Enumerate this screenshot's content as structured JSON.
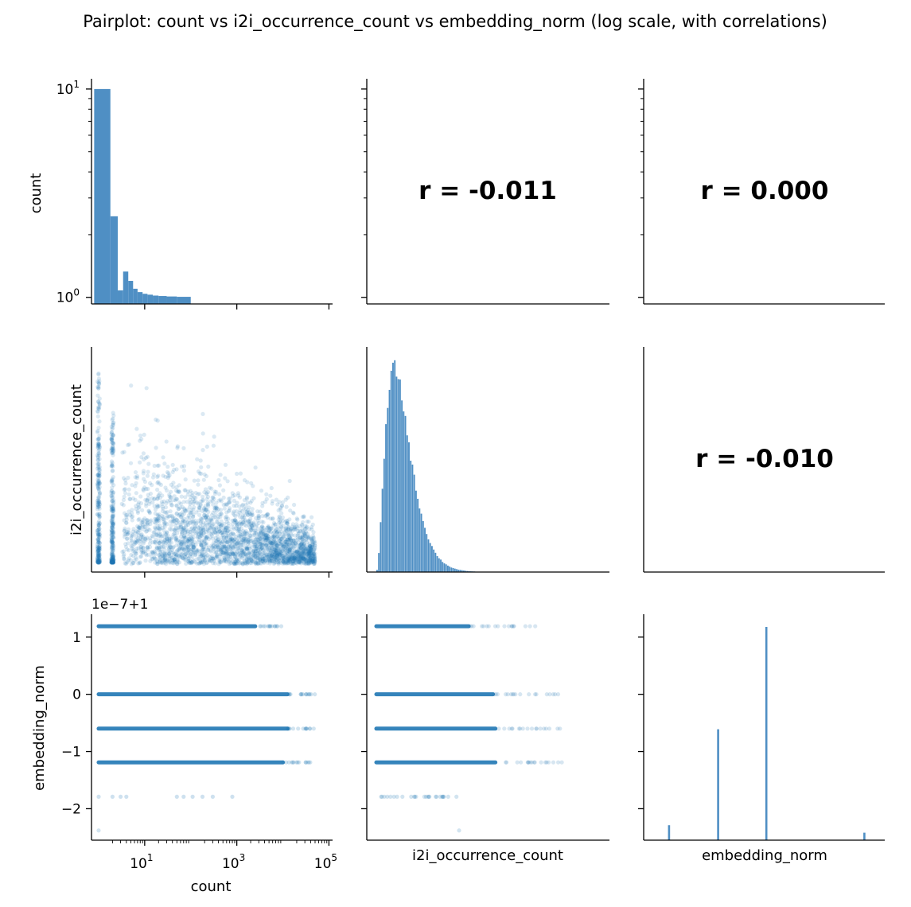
{
  "title": "Pairplot: count vs i2i_occurrence_count vs embedding_norm (log scale, with correlations)",
  "colors": {
    "marker": "#1f77b4",
    "hist": "#4f8fc4",
    "axis": "#000000"
  },
  "chart_data": {
    "type": "pairplot",
    "variables": [
      "count",
      "i2i_occurrence_count",
      "embedding_norm"
    ],
    "diag_kind": "hist",
    "correlations": [
      {
        "row": 0,
        "col": 1,
        "label": "r = -0.011",
        "value": -0.011
      },
      {
        "row": 0,
        "col": 2,
        "label": "r = 0.000",
        "value": 0.0
      },
      {
        "row": 1,
        "col": 2,
        "label": "r = -0.010",
        "value": -0.01
      }
    ],
    "count_hist": {
      "yscale": "log",
      "y_ticks": [
        {
          "value": 1,
          "label": "10",
          "exp": "0"
        },
        {
          "value": 10,
          "label": "10",
          "exp": "1"
        }
      ],
      "bins": [
        {
          "x0": 0.8,
          "x1": 1.8,
          "h": 10
        },
        {
          "x0": 1.8,
          "x1": 2.6,
          "h": 2.45
        },
        {
          "x0": 2.6,
          "x1": 3.4,
          "h": 1.08
        },
        {
          "x0": 3.4,
          "x1": 4.4,
          "h": 1.33
        },
        {
          "x0": 4.4,
          "x1": 5.6,
          "h": 1.2
        },
        {
          "x0": 5.6,
          "x1": 7.0,
          "h": 1.1
        },
        {
          "x0": 7.0,
          "x1": 9.0,
          "h": 1.06
        },
        {
          "x0": 9.0,
          "x1": 11.5,
          "h": 1.04
        },
        {
          "x0": 11.5,
          "x1": 15.0,
          "h": 1.03
        },
        {
          "x0": 15.0,
          "x1": 20.0,
          "h": 1.02
        },
        {
          "x0": 20.0,
          "x1": 30.0,
          "h": 1.015
        },
        {
          "x0": 30.0,
          "x1": 50.0,
          "h": 1.01
        },
        {
          "x0": 50.0,
          "x1": 100.0,
          "h": 1.006
        }
      ]
    },
    "count_axis": {
      "scale": "log",
      "range": [
        0.7,
        120000
      ],
      "ticks": [
        {
          "value": 10,
          "base": "10",
          "exp": "1"
        },
        {
          "value": 1000,
          "base": "10",
          "exp": "3"
        },
        {
          "value": 100000,
          "base": "10",
          "exp": "5"
        }
      ]
    },
    "embedding_norm_axis": {
      "offset_label": "1e−7+1",
      "range": [
        -2.55,
        1.4
      ],
      "ticks": [
        {
          "value": 1,
          "label": "1"
        },
        {
          "value": 0,
          "label": "0"
        },
        {
          "value": -1,
          "label": "−1"
        },
        {
          "value": -2,
          "label": "−2"
        }
      ],
      "levels": [
        1.19,
        0,
        -0.6,
        -1.19,
        -1.79,
        -2.38
      ]
    },
    "i2i_hist": {
      "range": [
        0,
        1
      ],
      "peak_x": 0.12,
      "note_shape": "right-skewed unimodal"
    },
    "embedding_norm_hist": {
      "bars": [
        {
          "value": -1.79,
          "rel_height": 0.07
        },
        {
          "value": -1.19,
          "rel_height": 0.52
        },
        {
          "value": -0.6,
          "rel_height": 1.0
        },
        {
          "value": 0.6,
          "rel_height": 0.035
        }
      ]
    }
  }
}
